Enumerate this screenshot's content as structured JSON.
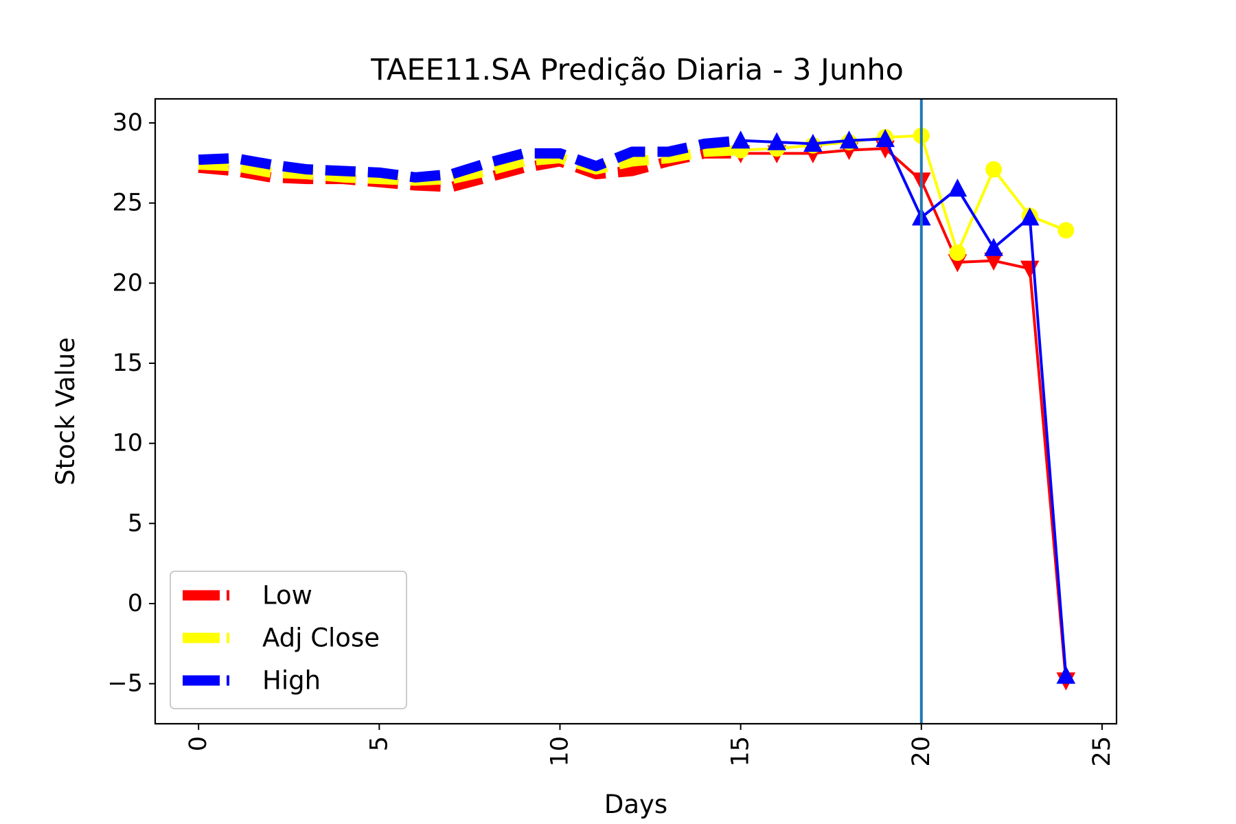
{
  "chart_data": {
    "type": "line",
    "title": "TAEE11.SA Predição Diaria - 3 Junho",
    "xlabel": "Days",
    "ylabel": "Stock Value",
    "xlim": [
      -1.2,
      25.4
    ],
    "ylim": [
      -7.5,
      31.5
    ],
    "xticks": [
      0,
      5,
      10,
      15,
      20,
      25
    ],
    "xtick_labels": [
      "0",
      "5",
      "10",
      "15",
      "20",
      "25"
    ],
    "yticks": [
      -5,
      0,
      5,
      10,
      15,
      20,
      25,
      30
    ],
    "ytick_labels": [
      "−5",
      "0",
      "5",
      "10",
      "15",
      "20",
      "25",
      "30"
    ],
    "vline_x": 20,
    "vline_color": "#1f77b4",
    "legend_placement": "lower-left",
    "grid": false,
    "series": [
      {
        "name": "Low",
        "color": "#ff0000",
        "marker": "triangle-down",
        "history_x": [
          0,
          1,
          2,
          3,
          4,
          5,
          6,
          7,
          8,
          9,
          10,
          11,
          12,
          13,
          14,
          15
        ],
        "history_y": [
          27.2,
          27.0,
          26.6,
          26.5,
          26.5,
          26.3,
          26.1,
          26.0,
          26.6,
          27.2,
          27.6,
          26.8,
          27.0,
          27.6,
          28.1,
          28.1
        ],
        "pred_x": [
          15,
          16,
          17,
          18,
          19,
          20,
          21,
          22,
          23,
          24
        ],
        "pred_y": [
          28.1,
          28.1,
          28.1,
          28.3,
          28.4,
          26.4,
          21.3,
          21.4,
          20.9,
          -4.8
        ]
      },
      {
        "name": "Adj Close",
        "color": "#ffff00",
        "marker": "circle",
        "history_x": [
          0,
          1,
          2,
          3,
          4,
          5,
          6,
          7,
          8,
          9,
          10,
          11,
          12,
          13,
          14,
          15
        ],
        "history_y": [
          27.4,
          27.3,
          26.9,
          26.8,
          26.6,
          26.5,
          26.4,
          26.5,
          27.0,
          27.6,
          27.8,
          27.1,
          27.6,
          27.8,
          28.2,
          28.3
        ],
        "pred_x": [
          15,
          16,
          17,
          18,
          19,
          20,
          21,
          22,
          23,
          24
        ],
        "pred_y": [
          28.3,
          28.4,
          28.6,
          28.8,
          29.1,
          29.2,
          21.9,
          27.1,
          24.2,
          23.3
        ]
      },
      {
        "name": "High",
        "color": "#0000ff",
        "marker": "triangle-up",
        "history_x": [
          0,
          1,
          2,
          3,
          4,
          5,
          6,
          7,
          8,
          9,
          10,
          11,
          12,
          13,
          14,
          15
        ],
        "history_y": [
          27.7,
          27.8,
          27.4,
          27.1,
          27.0,
          26.9,
          26.6,
          26.8,
          27.5,
          28.1,
          28.1,
          27.3,
          28.2,
          28.2,
          28.7,
          28.9
        ],
        "pred_x": [
          15,
          16,
          17,
          18,
          19,
          20,
          21,
          22,
          23,
          24
        ],
        "pred_y": [
          28.9,
          28.8,
          28.7,
          28.9,
          29.0,
          24.1,
          25.9,
          22.2,
          24.1,
          -4.5
        ]
      }
    ]
  }
}
